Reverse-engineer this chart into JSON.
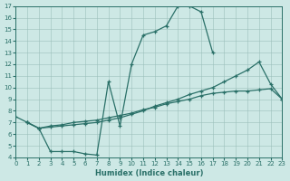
{
  "bg_color": "#cde8e5",
  "line_color": "#2a7068",
  "xlabel": "Humidex (Indice chaleur)",
  "xlim": [
    0,
    23
  ],
  "ylim": [
    4,
    17
  ],
  "xticks": [
    0,
    1,
    2,
    3,
    4,
    5,
    6,
    7,
    8,
    9,
    10,
    11,
    12,
    13,
    14,
    15,
    16,
    17,
    18,
    19,
    20,
    21,
    22,
    23
  ],
  "yticks": [
    4,
    5,
    6,
    7,
    8,
    9,
    10,
    11,
    12,
    13,
    14,
    15,
    16,
    17
  ],
  "curve1_x": [
    0,
    1,
    2,
    3,
    4,
    5,
    6,
    7,
    8,
    9,
    10,
    11,
    12,
    13,
    14,
    15,
    16,
    17
  ],
  "curve1_y": [
    7.5,
    7.0,
    6.5,
    4.5,
    4.5,
    4.5,
    4.3,
    4.2,
    10.5,
    6.7,
    12.0,
    14.5,
    14.8,
    15.3,
    17.0,
    17.0,
    16.5,
    13.0
  ],
  "curve2_x": [
    1,
    2,
    3,
    4,
    5,
    6,
    7,
    8,
    9,
    10,
    11,
    12,
    13,
    14,
    15,
    16,
    17,
    18,
    19,
    20,
    21,
    22,
    23
  ],
  "curve2_y": [
    7.0,
    6.5,
    6.7,
    6.8,
    7.0,
    7.1,
    7.2,
    7.4,
    7.6,
    7.8,
    8.1,
    8.3,
    8.6,
    8.8,
    9.0,
    9.3,
    9.5,
    9.6,
    9.7,
    9.7,
    9.8,
    9.9,
    9.0
  ],
  "curve3_x": [
    1,
    2,
    3,
    4,
    5,
    6,
    7,
    8,
    9,
    10,
    11,
    12,
    13,
    14,
    15,
    16,
    17,
    18,
    19,
    20,
    21,
    22,
    23
  ],
  "curve3_y": [
    7.0,
    6.5,
    6.6,
    6.7,
    6.8,
    6.9,
    7.0,
    7.2,
    7.4,
    7.7,
    8.0,
    8.4,
    8.7,
    9.0,
    9.4,
    9.7,
    10.0,
    10.5,
    11.0,
    11.5,
    12.2,
    10.3,
    9.0
  ]
}
